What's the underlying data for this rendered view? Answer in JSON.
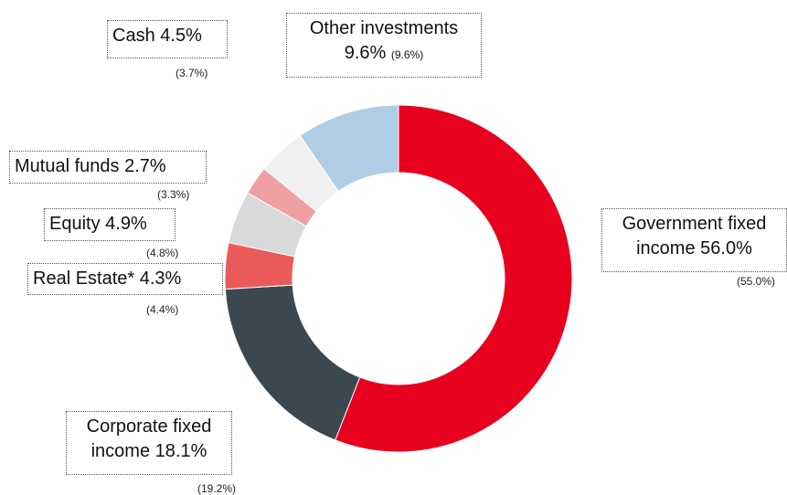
{
  "chart_data": {
    "type": "donut",
    "categories": [
      "Government fixed income",
      "Corporate fixed income",
      "Real Estate*",
      "Equity",
      "Mutual funds",
      "Cash",
      "Other investments"
    ],
    "values": [
      56.0,
      18.1,
      4.3,
      4.9,
      2.7,
      4.5,
      9.6
    ],
    "value_labels": [
      "56.0%",
      "18.1%",
      "4.3%",
      "4.9%",
      "2.7%",
      "4.5%",
      "9.6%"
    ],
    "previous_values": [
      55.0,
      19.2,
      4.4,
      4.8,
      3.3,
      3.7,
      9.6
    ],
    "previous_value_labels": [
      "(55.0%)",
      "(19.2%)",
      "(4.4%)",
      "(4.8%)",
      "(3.3%)",
      "(3.7%)",
      "(9.6%)"
    ],
    "colors": [
      "#e8001f",
      "#3c4850",
      "#eb5a5a",
      "#d9d9d9",
      "#f0a0a2",
      "#f0f0f0",
      "#b0cde6"
    ]
  }
}
